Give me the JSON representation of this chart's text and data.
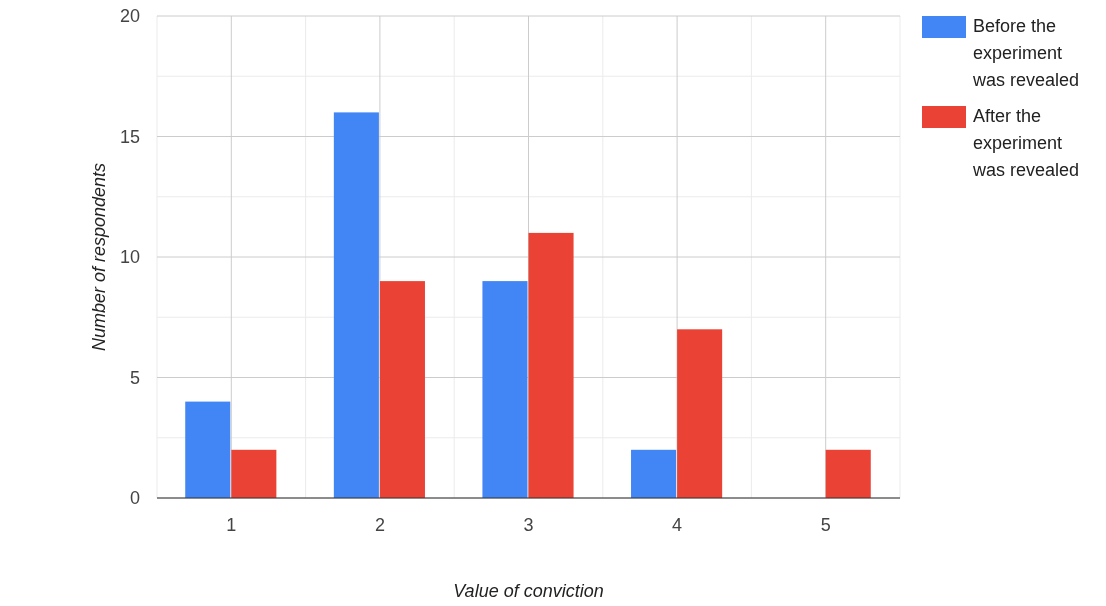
{
  "chart_data": {
    "type": "bar",
    "xlabel": "Value of conviction",
    "ylabel": "Number of respondents",
    "x": [
      1,
      2,
      3,
      4,
      5
    ],
    "xlim": [
      0.5,
      5.5
    ],
    "xticks": [
      1,
      2,
      3,
      4,
      5
    ],
    "ylim": [
      0,
      20
    ],
    "yticks": [
      0,
      5,
      10,
      15,
      20
    ],
    "grid": true,
    "legend": "top right",
    "series": [
      {
        "name": "Before the experiment was revealed",
        "color": "#4285f4",
        "values": [
          4,
          16,
          9,
          2,
          0
        ]
      },
      {
        "name": "After the experiment was revealed",
        "color": "#ea4335",
        "values": [
          2,
          9,
          11,
          7,
          2
        ]
      }
    ]
  }
}
